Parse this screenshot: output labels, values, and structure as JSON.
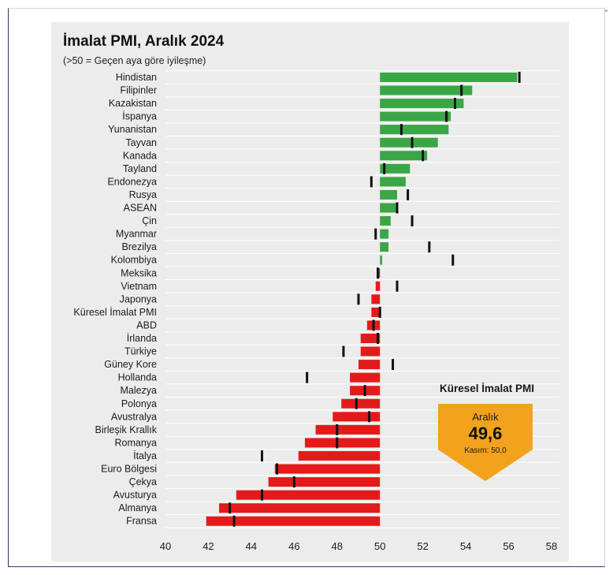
{
  "title": "İmalat PMI, Aralık 2024",
  "subtitle": "(>50 = Geçen aya göre iyileşme)",
  "callout": {
    "title": "Küresel İmalat PMI",
    "label": "Aralık",
    "value": "49,6",
    "previous": "Kasım: 50,0",
    "color": "#f2a21c"
  },
  "colors": {
    "positive": "#3aa645",
    "negative": "#e41a1a",
    "marker": "#111111",
    "panel": "#ececec",
    "grid": "#ffffff"
  },
  "chart_data": {
    "type": "bar",
    "orientation": "horizontal",
    "title": "İmalat PMI, Aralık 2024",
    "subtitle": "(>50 = Geçen aya göre iyileşme)",
    "baseline": 50,
    "xlim": [
      40,
      58
    ],
    "xticks": [
      "40",
      "42",
      "44",
      "46",
      "48",
      "50",
      "52",
      "54",
      "56",
      "58"
    ],
    "grid": true,
    "categories": [
      "Hindistan",
      "Filipinler",
      "Kazakistan",
      "İspanya",
      "Yunanistan",
      "Tayvan",
      "Kanada",
      "Tayland",
      "Endonezya",
      "Rusya",
      "ASEAN",
      "Çin",
      "Myanmar",
      "Brezilya",
      "Kolombiya",
      "Meksika",
      "Vietnam",
      "Japonya",
      "Küresel İmalat PMI",
      "ABD",
      "İrlanda",
      "Türkiye",
      "Güney Kore",
      "Hollanda",
      "Malezya",
      "Polonya",
      "Avustralya",
      "Birleşik Krallık",
      "Romanya",
      "İtalya",
      "Euro Bölgesi",
      "Çekya",
      "Avusturya",
      "Almanya",
      "Fransa"
    ],
    "series": [
      {
        "values": [
          56.4,
          54.3,
          53.9,
          53.3,
          53.2,
          52.7,
          52.2,
          51.4,
          51.2,
          50.8,
          50.8,
          50.5,
          50.4,
          50.4,
          50.1,
          49.9,
          49.8,
          49.6,
          49.6,
          49.4,
          49.1,
          49.1,
          49.0,
          48.6,
          48.6,
          48.2,
          47.8,
          47.0,
          46.5,
          46.2,
          45.1,
          44.8,
          43.3,
          42.5,
          41.9
        ]
      },
      {
        "values": [
          56.5,
          53.8,
          53.5,
          53.1,
          51.0,
          51.5,
          52.0,
          50.2,
          49.6,
          51.3,
          50.8,
          51.5,
          49.8,
          52.3,
          53.4,
          49.9,
          50.8,
          49.0,
          50.0,
          49.7,
          49.9,
          48.3,
          50.6,
          46.6,
          49.3,
          48.9,
          49.5,
          48.0,
          48.0,
          44.5,
          45.2,
          46.0,
          44.5,
          43.0,
          43.2
        ]
      }
    ]
  }
}
